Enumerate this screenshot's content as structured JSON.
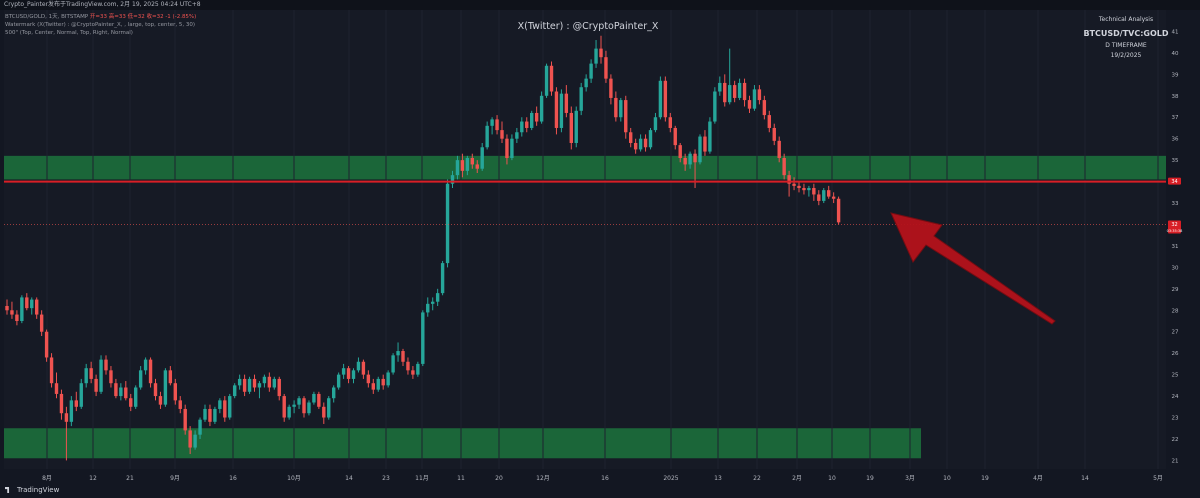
{
  "header": {
    "info": "Crypto_Painter发布于TradingView.com, 2月 19, 2025 04:24 UTC+8"
  },
  "legend": {
    "symbol": "BTCUSD/GOLD, 1天, BITSTAMP",
    "ohlc": "开=33  高=33  低=32  收=32  -1 (-2.85%)",
    "line2": "Watermark (X(Twitter) : @CryptoPainter_X, , large, top, center, 5, 30)",
    "line3": "500\" (Top, Center, Normal, Top, Right, Normal)"
  },
  "watermark": "X(Twitter) : @CryptoPainter_X",
  "technical": {
    "heading": "Technical Analysis",
    "pair": "BTCUSD/TVC:GOLD",
    "timeframe": "D TIMEFRAME",
    "date": "19/2/2025"
  },
  "brand": "TradingView",
  "colors": {
    "background": "#131722",
    "up": "#26a69a",
    "down": "#ef5350",
    "zone": "#1b6a3a",
    "resistance_line": "#d81f26",
    "arrow": "#b5121b"
  },
  "chart_data": {
    "type": "candlestick",
    "x_tick_labels": [
      "8月",
      "12",
      "21",
      "9月",
      "16",
      "10月",
      "14",
      "23",
      "11月",
      "11",
      "20",
      "12月",
      "16",
      "2025",
      "13",
      "22",
      "2月",
      "10",
      "19",
      "3月",
      "10",
      "19",
      "4月",
      "14",
      "5月"
    ],
    "y_tick_labels": [
      "21",
      "22",
      "23",
      "24",
      "25",
      "26",
      "27",
      "28",
      "29",
      "30",
      "31",
      "32",
      "33",
      "34",
      "35",
      "36",
      "37",
      "38",
      "39",
      "40",
      "41"
    ],
    "y_range": [
      20.6,
      42
    ],
    "price_labels": [
      {
        "value": 34,
        "text": "34",
        "color": "#d81f26"
      },
      {
        "value": 32,
        "text": "32",
        "sub": "03:35:38",
        "color": "#d81f26"
      }
    ],
    "zones": [
      {
        "low": 34.1,
        "high": 35.2,
        "color": "#1b6a3a"
      },
      {
        "low": 21.1,
        "high": 22.5,
        "color": "#1b6a3a"
      }
    ],
    "resistance_line": 34,
    "current_price": 32,
    "annotation": "red arrow pointing at latest candle",
    "candles": [
      [
        28.2,
        28.5,
        27.8,
        28.0
      ],
      [
        28.0,
        28.4,
        27.6,
        27.8
      ],
      [
        27.8,
        28.0,
        27.3,
        27.5
      ],
      [
        27.5,
        28.7,
        27.4,
        28.6
      ],
      [
        28.6,
        28.8,
        28.0,
        28.1
      ],
      [
        28.1,
        28.6,
        27.8,
        28.5
      ],
      [
        28.5,
        28.6,
        27.6,
        27.8
      ],
      [
        27.8,
        28.0,
        26.8,
        27.0
      ],
      [
        27.0,
        27.1,
        25.6,
        25.8
      ],
      [
        25.8,
        26.0,
        24.4,
        24.6
      ],
      [
        24.6,
        25.1,
        23.9,
        24.1
      ],
      [
        24.1,
        24.3,
        22.9,
        23.2
      ],
      [
        23.2,
        23.5,
        21.0,
        22.8
      ],
      [
        22.8,
        24.0,
        22.6,
        23.8
      ],
      [
        23.8,
        24.2,
        23.3,
        23.5
      ],
      [
        23.5,
        24.8,
        23.4,
        24.6
      ],
      [
        24.6,
        25.5,
        24.4,
        25.3
      ],
      [
        25.3,
        25.6,
        24.6,
        24.8
      ],
      [
        24.8,
        25.0,
        24.0,
        24.2
      ],
      [
        24.2,
        25.9,
        24.1,
        25.7
      ],
      [
        25.7,
        25.9,
        25.0,
        25.2
      ],
      [
        25.2,
        25.4,
        24.4,
        24.6
      ],
      [
        24.6,
        24.8,
        23.9,
        24.0
      ],
      [
        24.0,
        24.6,
        23.8,
        24.4
      ],
      [
        24.4,
        24.7,
        23.8,
        23.9
      ],
      [
        23.9,
        24.1,
        23.3,
        23.5
      ],
      [
        23.5,
        24.5,
        23.4,
        24.4
      ],
      [
        24.4,
        25.4,
        24.3,
        25.2
      ],
      [
        25.2,
        25.8,
        25.0,
        25.7
      ],
      [
        25.7,
        25.8,
        24.4,
        24.6
      ],
      [
        24.6,
        24.8,
        23.8,
        24.0
      ],
      [
        24.0,
        24.2,
        23.4,
        23.6
      ],
      [
        23.6,
        25.3,
        23.5,
        25.2
      ],
      [
        25.2,
        25.4,
        24.5,
        24.6
      ],
      [
        24.6,
        24.8,
        23.6,
        23.8
      ],
      [
        23.8,
        24.0,
        23.2,
        23.4
      ],
      [
        23.4,
        23.6,
        22.2,
        22.4
      ],
      [
        22.4,
        22.6,
        21.3,
        21.6
      ],
      [
        21.6,
        22.4,
        21.5,
        22.2
      ],
      [
        22.2,
        23.0,
        22.0,
        22.9
      ],
      [
        22.9,
        23.6,
        22.8,
        23.4
      ],
      [
        23.4,
        23.6,
        22.6,
        22.8
      ],
      [
        22.8,
        23.5,
        22.7,
        23.4
      ],
      [
        23.4,
        23.9,
        23.2,
        23.8
      ],
      [
        23.8,
        24.0,
        22.8,
        23.0
      ],
      [
        23.0,
        24.1,
        22.9,
        24.0
      ],
      [
        24.0,
        24.6,
        23.9,
        24.5
      ],
      [
        24.5,
        25.0,
        24.3,
        24.8
      ],
      [
        24.8,
        25.0,
        24.0,
        24.2
      ],
      [
        24.2,
        24.9,
        24.1,
        24.8
      ],
      [
        24.8,
        25.0,
        24.2,
        24.4
      ],
      [
        24.4,
        24.7,
        23.9,
        24.6
      ],
      [
        24.6,
        25.0,
        24.4,
        24.9
      ],
      [
        24.9,
        25.1,
        24.2,
        24.4
      ],
      [
        24.4,
        24.9,
        24.3,
        24.8
      ],
      [
        24.8,
        24.9,
        23.8,
        24.0
      ],
      [
        24.0,
        24.1,
        22.8,
        23.0
      ],
      [
        23.0,
        23.6,
        22.9,
        23.5
      ],
      [
        23.5,
        23.8,
        23.2,
        23.6
      ],
      [
        23.6,
        24.0,
        23.4,
        23.9
      ],
      [
        23.9,
        24.0,
        23.0,
        23.2
      ],
      [
        23.2,
        23.8,
        23.1,
        23.7
      ],
      [
        23.7,
        24.2,
        23.6,
        24.1
      ],
      [
        24.1,
        24.2,
        23.4,
        23.5
      ],
      [
        23.5,
        23.7,
        22.7,
        23.0
      ],
      [
        23.0,
        24.0,
        22.9,
        23.9
      ],
      [
        23.9,
        24.5,
        23.7,
        24.4
      ],
      [
        24.4,
        25.1,
        24.3,
        25.0
      ],
      [
        25.0,
        25.5,
        24.8,
        25.3
      ],
      [
        25.3,
        25.4,
        24.6,
        24.8
      ],
      [
        24.8,
        25.3,
        24.6,
        25.2
      ],
      [
        25.2,
        25.8,
        25.1,
        25.6
      ],
      [
        25.6,
        25.7,
        24.8,
        25.0
      ],
      [
        25.0,
        25.2,
        24.4,
        24.6
      ],
      [
        24.6,
        24.8,
        24.1,
        24.3
      ],
      [
        24.3,
        24.9,
        24.2,
        24.8
      ],
      [
        24.8,
        25.0,
        24.3,
        24.5
      ],
      [
        24.5,
        25.2,
        24.4,
        25.1
      ],
      [
        25.1,
        26.0,
        25.0,
        25.9
      ],
      [
        25.9,
        26.5,
        25.6,
        26.1
      ],
      [
        26.1,
        26.2,
        25.4,
        25.6
      ],
      [
        25.6,
        25.8,
        25.0,
        25.2
      ],
      [
        25.2,
        25.4,
        24.8,
        25.0
      ],
      [
        25.0,
        25.6,
        24.9,
        25.5
      ],
      [
        25.5,
        28.0,
        25.4,
        27.9
      ],
      [
        27.9,
        28.6,
        27.7,
        28.3
      ],
      [
        28.3,
        28.6,
        28.0,
        28.4
      ],
      [
        28.4,
        29.0,
        28.2,
        28.8
      ],
      [
        28.8,
        30.3,
        28.7,
        30.2
      ],
      [
        30.2,
        34.1,
        30.0,
        33.9
      ],
      [
        33.9,
        34.5,
        33.7,
        34.3
      ],
      [
        34.3,
        35.2,
        34.1,
        35.0
      ],
      [
        35.0,
        35.3,
        34.2,
        34.5
      ],
      [
        34.5,
        35.2,
        34.3,
        35.1
      ],
      [
        35.1,
        35.3,
        34.6,
        34.8
      ],
      [
        34.8,
        35.0,
        34.4,
        34.6
      ],
      [
        34.6,
        35.8,
        34.5,
        35.6
      ],
      [
        35.6,
        36.8,
        35.5,
        36.6
      ],
      [
        36.6,
        37.0,
        36.2,
        36.9
      ],
      [
        36.9,
        37.1,
        36.2,
        36.4
      ],
      [
        36.4,
        36.8,
        35.8,
        36.0
      ],
      [
        36.0,
        36.2,
        34.8,
        35.1
      ],
      [
        35.1,
        36.2,
        35.0,
        36.0
      ],
      [
        36.0,
        36.5,
        35.8,
        36.3
      ],
      [
        36.3,
        37.0,
        36.1,
        36.8
      ],
      [
        36.8,
        37.0,
        36.3,
        36.5
      ],
      [
        36.5,
        37.3,
        36.4,
        37.2
      ],
      [
        37.2,
        37.5,
        36.6,
        36.8
      ],
      [
        36.8,
        38.2,
        36.7,
        38.0
      ],
      [
        38.0,
        39.5,
        37.9,
        39.4
      ],
      [
        39.4,
        39.6,
        38.0,
        38.2
      ],
      [
        38.2,
        38.4,
        36.2,
        36.5
      ],
      [
        36.5,
        38.3,
        36.3,
        38.1
      ],
      [
        38.1,
        38.5,
        37.0,
        37.2
      ],
      [
        37.2,
        37.5,
        35.5,
        35.8
      ],
      [
        35.8,
        37.5,
        35.6,
        37.3
      ],
      [
        37.3,
        38.6,
        37.1,
        38.4
      ],
      [
        38.4,
        39.0,
        38.2,
        38.8
      ],
      [
        38.8,
        39.7,
        38.6,
        39.5
      ],
      [
        39.5,
        40.6,
        39.3,
        40.2
      ],
      [
        40.2,
        40.8,
        39.5,
        39.8
      ],
      [
        39.8,
        40.1,
        38.6,
        38.8
      ],
      [
        38.8,
        39.0,
        37.6,
        37.9
      ],
      [
        37.9,
        38.2,
        36.8,
        37.0
      ],
      [
        37.0,
        37.9,
        36.8,
        37.8
      ],
      [
        37.8,
        38.0,
        36.0,
        36.3
      ],
      [
        36.3,
        36.5,
        35.6,
        35.8
      ],
      [
        35.8,
        36.0,
        35.3,
        35.5
      ],
      [
        35.5,
        36.2,
        35.4,
        36.0
      ],
      [
        36.0,
        36.2,
        35.4,
        35.6
      ],
      [
        35.6,
        36.5,
        35.5,
        36.4
      ],
      [
        36.4,
        37.2,
        36.3,
        37.0
      ],
      [
        37.0,
        38.9,
        36.9,
        38.7
      ],
      [
        38.7,
        38.9,
        36.8,
        37.0
      ],
      [
        37.0,
        37.2,
        36.3,
        36.5
      ],
      [
        36.5,
        36.6,
        35.5,
        35.7
      ],
      [
        35.7,
        35.8,
        34.9,
        35.1
      ],
      [
        35.1,
        35.3,
        34.5,
        34.8
      ],
      [
        34.8,
        35.4,
        34.6,
        35.3
      ],
      [
        35.3,
        35.5,
        33.7,
        34.9
      ],
      [
        34.9,
        36.2,
        34.8,
        36.1
      ],
      [
        36.1,
        36.4,
        35.2,
        35.4
      ],
      [
        35.4,
        37.0,
        35.3,
        36.8
      ],
      [
        36.8,
        38.4,
        36.7,
        38.2
      ],
      [
        38.2,
        38.9,
        38.0,
        38.6
      ],
      [
        38.6,
        39.0,
        37.5,
        37.7
      ],
      [
        37.7,
        40.2,
        37.6,
        38.5
      ],
      [
        38.5,
        38.7,
        37.7,
        37.9
      ],
      [
        37.9,
        38.8,
        37.8,
        38.6
      ],
      [
        38.6,
        38.8,
        37.5,
        37.8
      ],
      [
        37.8,
        38.0,
        37.2,
        37.4
      ],
      [
        37.4,
        38.5,
        37.3,
        38.3
      ],
      [
        38.3,
        38.5,
        37.6,
        37.8
      ],
      [
        37.8,
        38.0,
        36.9,
        37.1
      ],
      [
        37.1,
        37.3,
        36.3,
        36.5
      ],
      [
        36.5,
        36.7,
        35.7,
        35.9
      ],
      [
        35.9,
        36.1,
        34.9,
        35.1
      ],
      [
        35.1,
        35.3,
        34.1,
        34.3
      ],
      [
        34.3,
        34.5,
        33.3,
        33.9
      ],
      [
        33.9,
        34.2,
        33.6,
        33.8
      ],
      [
        33.8,
        34.0,
        33.5,
        33.7
      ],
      [
        33.7,
        33.9,
        33.4,
        33.6
      ],
      [
        33.6,
        33.8,
        33.3,
        33.7
      ],
      [
        33.7,
        33.9,
        33.1,
        33.4
      ],
      [
        33.4,
        33.6,
        32.9,
        33.1
      ],
      [
        33.1,
        33.7,
        33.0,
        33.6
      ],
      [
        33.6,
        33.8,
        33.2,
        33.3
      ],
      [
        33.3,
        33.5,
        33.0,
        33.2
      ],
      [
        33.2,
        33.3,
        32.0,
        32.1
      ]
    ]
  }
}
